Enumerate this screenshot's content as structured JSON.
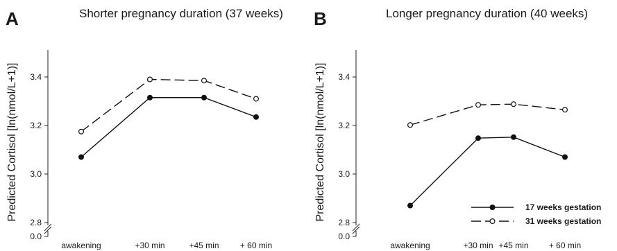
{
  "chart_data": [
    {
      "type": "line",
      "panel_label": "A",
      "title": "Shorter pregnancy duration (37 weeks)",
      "ylabel": "Predicted Cortisol [ln(nmol/L+1)]",
      "xlabel": "",
      "categories": [
        "awakening",
        "+30 min",
        "+45 min",
        "+ 60 min"
      ],
      "yticks": [
        "2.8",
        "3.0",
        "3.2",
        "3.4"
      ],
      "y_zero_label": "0.0",
      "ylim": [
        2.8,
        3.5
      ],
      "axis_break": true,
      "series": [
        {
          "name": "17 weeks gestation",
          "style": "solid",
          "marker": "filled-circle",
          "values": [
            3.07,
            3.315,
            3.315,
            3.235
          ]
        },
        {
          "name": "31 weeks gestation",
          "style": "dashed",
          "marker": "open-circle",
          "values": [
            3.175,
            3.39,
            3.385,
            3.31
          ]
        }
      ],
      "legend": null
    },
    {
      "type": "line",
      "panel_label": "B",
      "title": "Longer pregnancy duration (40 weeks)",
      "ylabel": "Predicted Cortisol [ln(nmol/L+1)]",
      "xlabel": "",
      "categories": [
        "awakening",
        "+30 min",
        "+45 min",
        "+ 60 min"
      ],
      "yticks": [
        "2.8",
        "3.0",
        "3.2",
        "3.4"
      ],
      "y_zero_label": "0.0",
      "ylim": [
        2.8,
        3.5
      ],
      "axis_break": true,
      "series": [
        {
          "name": "17 weeks gestation",
          "style": "solid",
          "marker": "filled-circle",
          "values": [
            2.87,
            3.148,
            3.152,
            3.07
          ]
        },
        {
          "name": "31 weeks gestation",
          "style": "dashed",
          "marker": "open-circle",
          "values": [
            3.202,
            3.285,
            3.288,
            3.265
          ]
        }
      ],
      "legend": "bottom-right"
    }
  ]
}
